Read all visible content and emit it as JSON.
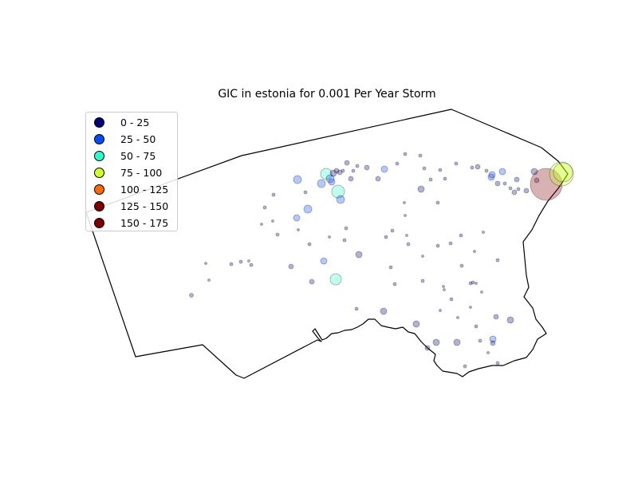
{
  "title": "GIC in estonia for 0.001 Per Year Storm",
  "legend": [
    {
      "label": "0 - 25",
      "color": "#00007f"
    },
    {
      "label": "25 - 50",
      "color": "#004cff"
    },
    {
      "label": "50 - 75",
      "color": "#29ffce"
    },
    {
      "label": "75 - 100",
      "color": "#ceff29"
    },
    {
      "label": "100 - 125",
      "color": "#ff6800"
    },
    {
      "label": "125 - 150",
      "color": "#7f0000"
    },
    {
      "label": "150 - 175",
      "color": "#7f0000"
    }
  ]
}
